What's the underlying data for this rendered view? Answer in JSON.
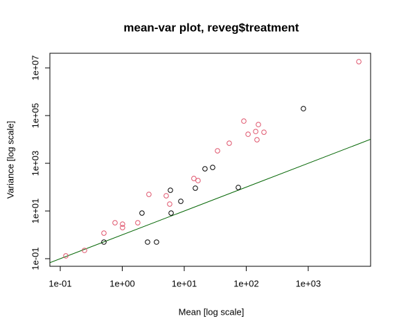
{
  "chart_data": {
    "type": "scatter",
    "title": "mean-var plot, reveg$treatment",
    "x_label": "Mean [log scale]",
    "y_label": "Variance [log scale]",
    "log_x": true,
    "log_y": true,
    "grid": false,
    "xlim": [
      0.068,
      10140
    ],
    "ylim": [
      0.048,
      41000000
    ],
    "xticks": [
      {
        "value": 0.1,
        "label": "1e-01"
      },
      {
        "value": 1,
        "label": "1e+00"
      },
      {
        "value": 10,
        "label": "1e+01"
      },
      {
        "value": 100,
        "label": "1e+02"
      },
      {
        "value": 1000,
        "label": "1e+03"
      }
    ],
    "yticks": [
      {
        "value": 0.1,
        "label": "1e-01"
      },
      {
        "value": 10,
        "label": "1e+01"
      },
      {
        "value": 1000,
        "label": "1e+03"
      },
      {
        "value": 100000,
        "label": "1e+05"
      },
      {
        "value": 10000000,
        "label": "1e+07"
      }
    ],
    "series": [
      {
        "color": "#DF536B",
        "x": [
          0.123,
          0.246,
          0.506,
          0.764,
          1.01,
          1.01,
          1.78,
          2.69,
          5.12,
          5.82,
          14.3,
          16.7,
          34.4,
          53.2,
          91.4,
          107,
          142,
          149,
          157,
          193,
          6550
        ],
        "values": [
          0.131,
          0.223,
          1.18,
          3.21,
          2.81,
          2.01,
          3.21,
          49.7,
          43.5,
          19.5,
          230,
          188,
          3330,
          6930,
          58600,
          16500,
          21500,
          9680,
          42000,
          20100,
          18200000
        ]
      },
      {
        "color": "#000000",
        "x": [
          0.506,
          2.08,
          2.56,
          3.57,
          5.98,
          6.14,
          8.8,
          15.1,
          21.6,
          28.7,
          74.5,
          836
        ],
        "values": [
          0.497,
          8.18,
          0.497,
          0.497,
          74.1,
          8.18,
          25.5,
          90.6,
          586,
          670,
          96.8,
          195000
        ]
      }
    ],
    "reference_line": {
      "color": "#006400",
      "x": [
        0.068,
        10140
      ],
      "values": [
        0.068,
        10140
      ]
    }
  }
}
